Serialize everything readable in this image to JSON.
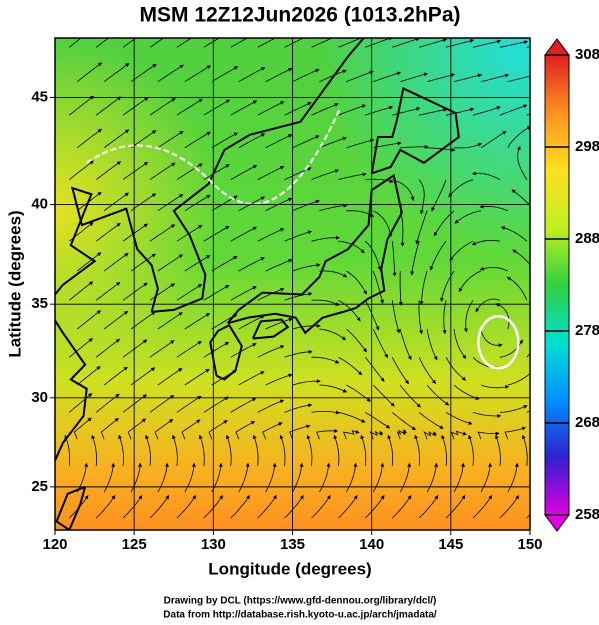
{
  "chart_data": {
    "type": "map",
    "title": "MSM 12Z12Jun2026 (1013.2hPa)",
    "xlabel": "Longitude (degrees)",
    "ylabel": "Latitude  (degrees)",
    "projection": "mercator",
    "xlim": [
      120,
      150
    ],
    "ylim": [
      22.5,
      47.6
    ],
    "xticks": [
      120,
      125,
      130,
      135,
      140,
      145,
      150
    ],
    "yticks": [
      25,
      30,
      35,
      40,
      45
    ],
    "grid": true,
    "colorbar": {
      "lim": [
        258,
        308
      ],
      "ticks": [
        258,
        268,
        278,
        288,
        298,
        308
      ],
      "colors": [
        "#e000e0",
        "#3020d0",
        "#0090ff",
        "#00e0d0",
        "#30d040",
        "#c0f020",
        "#ffe020",
        "#ff9020",
        "#e02020"
      ]
    }
  },
  "credits": [
    "Drawing by DCL (https://www.gfd-dennou.org/library/dcl/)",
    "Data from http://database.rish.kyoto-u.ac.jp/arch/jmadata/"
  ]
}
